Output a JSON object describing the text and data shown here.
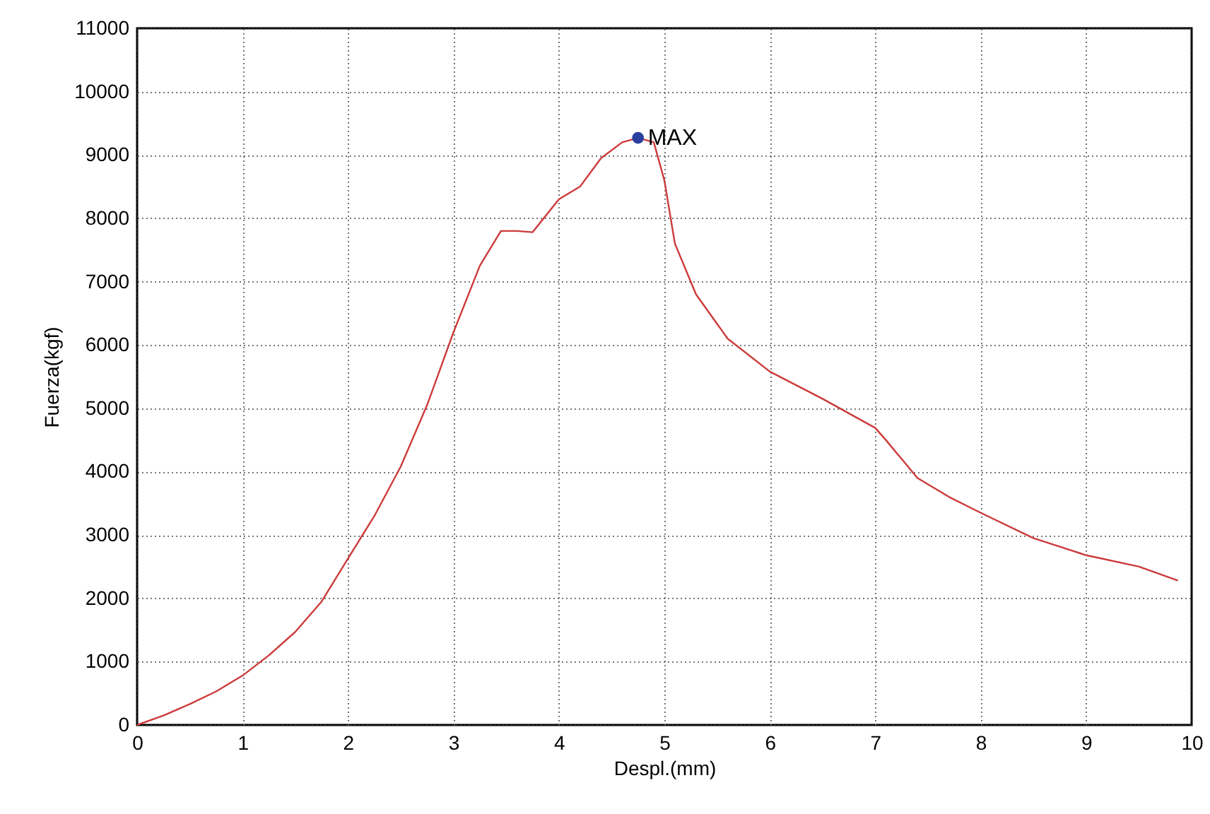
{
  "chart_data": {
    "type": "line",
    "xlabel": "Despl.(mm)",
    "ylabel": "Fuerza(kgf)",
    "xlim": [
      0,
      10
    ],
    "xticks": [
      0,
      1,
      2,
      3,
      4,
      5,
      6,
      7,
      8,
      9,
      10
    ],
    "ylim": [
      0,
      11000
    ],
    "yticks": [
      0,
      1000,
      2000,
      3000,
      4000,
      5000,
      6000,
      7000,
      8000,
      9000,
      10000,
      11000
    ],
    "grid": true,
    "legend": false,
    "series": [
      {
        "type": "line",
        "color": "#cc3b3b",
        "x": [
          0,
          0.25,
          0.5,
          0.75,
          1,
          1.25,
          1.5,
          1.75,
          2,
          2.25,
          2.5,
          2.75,
          3,
          3.25,
          3.45,
          3.6,
          3.75,
          4,
          4.2,
          4.4,
          4.6,
          4.75,
          4.9,
          5,
          5.1,
          5.3,
          5.6,
          6,
          6.5,
          7,
          7.1,
          7.4,
          7.7,
          8,
          8.5,
          9,
          9.5,
          9.87
        ],
        "values": [
          0,
          150,
          330,
          530,
          780,
          1100,
          1470,
          1950,
          2630,
          3300,
          4080,
          5050,
          6200,
          7250,
          7800,
          7800,
          7780,
          8300,
          8500,
          8950,
          9200,
          9270,
          9200,
          8600,
          7600,
          6800,
          6100,
          5580,
          5150,
          4690,
          4500,
          3900,
          3600,
          3350,
          2950,
          2680,
          2500,
          2280
        ]
      },
      {
        "type": "scatter",
        "color": "#2a3f9e",
        "x": [
          4.75
        ],
        "values": [
          9270
        ]
      }
    ],
    "annotations": [
      {
        "text": "MAX",
        "x": 4.75,
        "y": 9270
      }
    ]
  }
}
